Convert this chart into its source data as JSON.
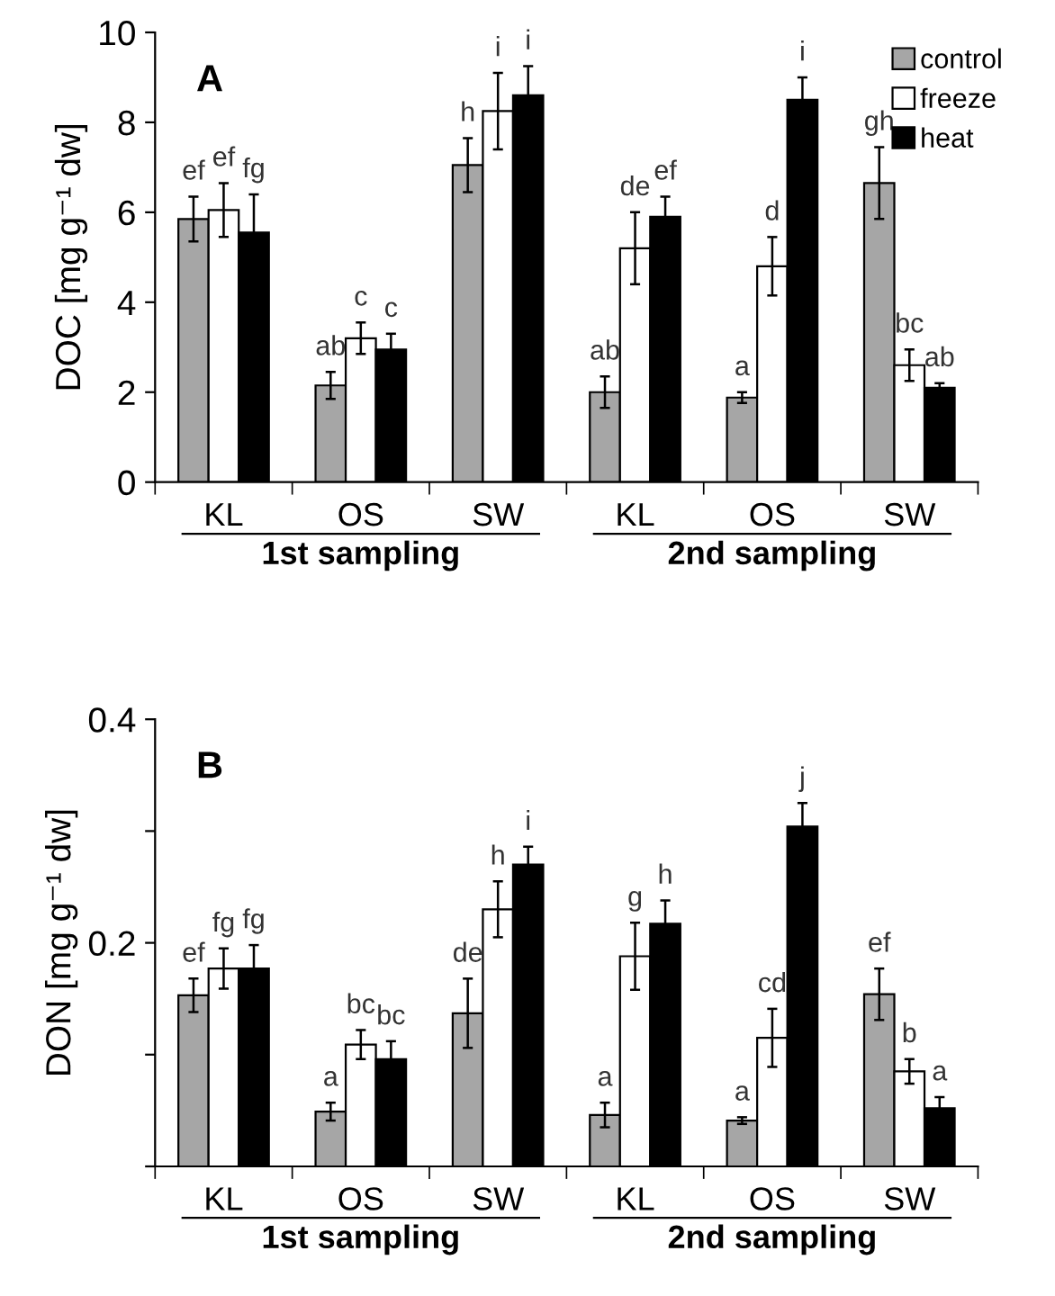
{
  "chart_data": [
    {
      "type": "bar",
      "title": "A",
      "ylabel": "DOC [mg g⁻¹ dw]",
      "categories": [
        "KL",
        "OS",
        "SW",
        "KL",
        "OS",
        "SW"
      ],
      "ylim": [
        0,
        10
      ],
      "yticks": [
        0,
        2,
        4,
        6,
        8,
        10
      ],
      "grid": false,
      "legend": "top right",
      "series": [
        {
          "name": "control",
          "color": "#a6a6a6",
          "values": [
            5.85,
            2.15,
            7.05,
            2.0,
            1.88,
            6.65
          ],
          "errors": [
            0.5,
            0.3,
            0.6,
            0.35,
            0.12,
            0.8
          ],
          "value_labels": [
            "ef",
            "ab",
            "h",
            "ab",
            "a",
            "gh"
          ]
        },
        {
          "name": "freeze",
          "color": "#ffffff",
          "values": [
            6.05,
            3.2,
            8.25,
            5.2,
            4.8,
            2.6
          ],
          "errors": [
            0.6,
            0.35,
            0.85,
            0.8,
            0.65,
            0.35
          ],
          "value_labels": [
            "ef",
            "c",
            "i",
            "de",
            "d",
            "bc"
          ]
        },
        {
          "name": "heat",
          "color": "#000000",
          "values": [
            5.55,
            2.95,
            8.6,
            5.9,
            8.5,
            2.1
          ],
          "errors": [
            0.85,
            0.35,
            0.65,
            0.45,
            0.5,
            0.1
          ],
          "value_labels": [
            "fg",
            "c",
            "i",
            "ef",
            "i",
            "ab"
          ]
        }
      ],
      "annotations": [
        "1st sampling",
        "2nd sampling"
      ]
    },
    {
      "type": "bar",
      "title": "B",
      "ylabel": "DON [mg g⁻¹ dw]",
      "categories": [
        "KL",
        "OS",
        "SW",
        "KL",
        "OS",
        "SW"
      ],
      "ylim": [
        0,
        0.4
      ],
      "yticks": [
        {
          "value": 0,
          "label": null
        },
        {
          "value": 0.1,
          "label": null
        },
        0.2,
        {
          "value": 0.3,
          "label": null
        },
        0.4
      ],
      "grid": false,
      "series": [
        {
          "color": "#a6a6a6",
          "values": [
            0.153,
            0.049,
            0.137,
            0.046,
            0.041,
            0.154
          ],
          "errors": [
            0.015,
            0.008,
            0.031,
            0.011,
            0.003,
            0.023
          ],
          "value_labels": [
            "ef",
            "a",
            "de",
            "a",
            "a",
            "ef"
          ]
        },
        {
          "color": "#ffffff",
          "values": [
            0.177,
            0.109,
            0.23,
            0.188,
            0.115,
            0.085
          ],
          "errors": [
            0.018,
            0.013,
            0.025,
            0.03,
            0.026,
            0.011
          ],
          "value_labels": [
            "fg",
            "bc",
            "h",
            "g",
            "cd",
            "b"
          ]
        },
        {
          "color": "#000000",
          "values": [
            0.177,
            0.096,
            0.27,
            0.217,
            0.304,
            0.052
          ],
          "errors": [
            0.021,
            0.016,
            0.016,
            0.021,
            0.021,
            0.01
          ],
          "value_labels": [
            "fg",
            "bc",
            "i",
            "h",
            "j",
            "a"
          ]
        }
      ],
      "annotations": [
        "1st sampling",
        "2nd sampling"
      ]
    }
  ]
}
